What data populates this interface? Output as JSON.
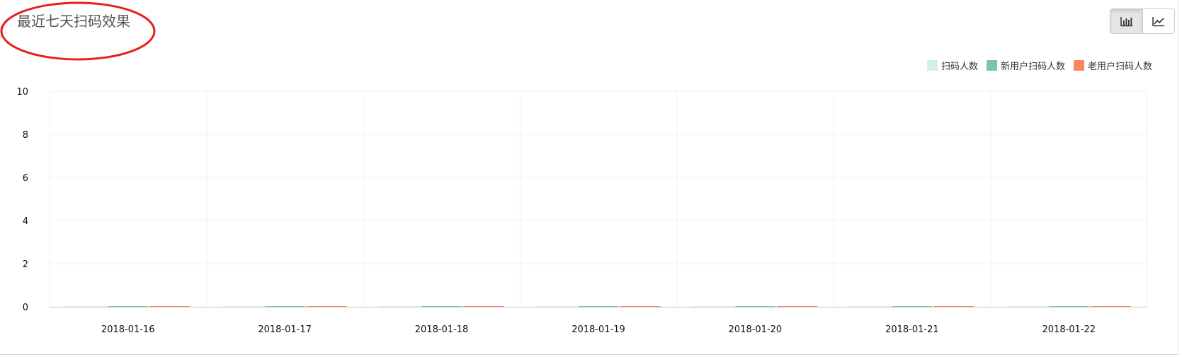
{
  "panel": {
    "title": "最近七天扫码效果"
  },
  "toolbar": {
    "bar_chart_icon": "bar-chart-icon",
    "line_chart_icon": "line-chart-icon",
    "active": "bar"
  },
  "annotation": {
    "shape": "ellipse",
    "color": "#e8201c"
  },
  "colors": {
    "grid": "#f0f0f0",
    "axis": "#cccccc"
  },
  "chart_data": {
    "type": "bar",
    "title": "最近七天扫码效果",
    "xlabel": "",
    "ylabel": "",
    "categories": [
      "2018-01-16",
      "2018-01-17",
      "2018-01-18",
      "2018-01-19",
      "2018-01-20",
      "2018-01-21",
      "2018-01-22"
    ],
    "series": [
      {
        "name": "扫码人数",
        "color": "#d3eeee",
        "values": [
          0,
          0,
          0,
          0,
          0,
          0,
          0
        ]
      },
      {
        "name": "新用户扫码人数",
        "color": "#7fc1b1",
        "values": [
          0,
          0,
          0,
          0,
          0,
          0,
          0
        ]
      },
      {
        "name": "老用户扫码人数",
        "color": "#fb8760",
        "values": [
          0,
          0,
          0,
          0,
          0,
          0,
          0
        ]
      }
    ],
    "ylim": [
      0,
      10
    ],
    "yticks": [
      0,
      2,
      4,
      6,
      8,
      10
    ],
    "grid": true,
    "legend_position": "top-right"
  }
}
